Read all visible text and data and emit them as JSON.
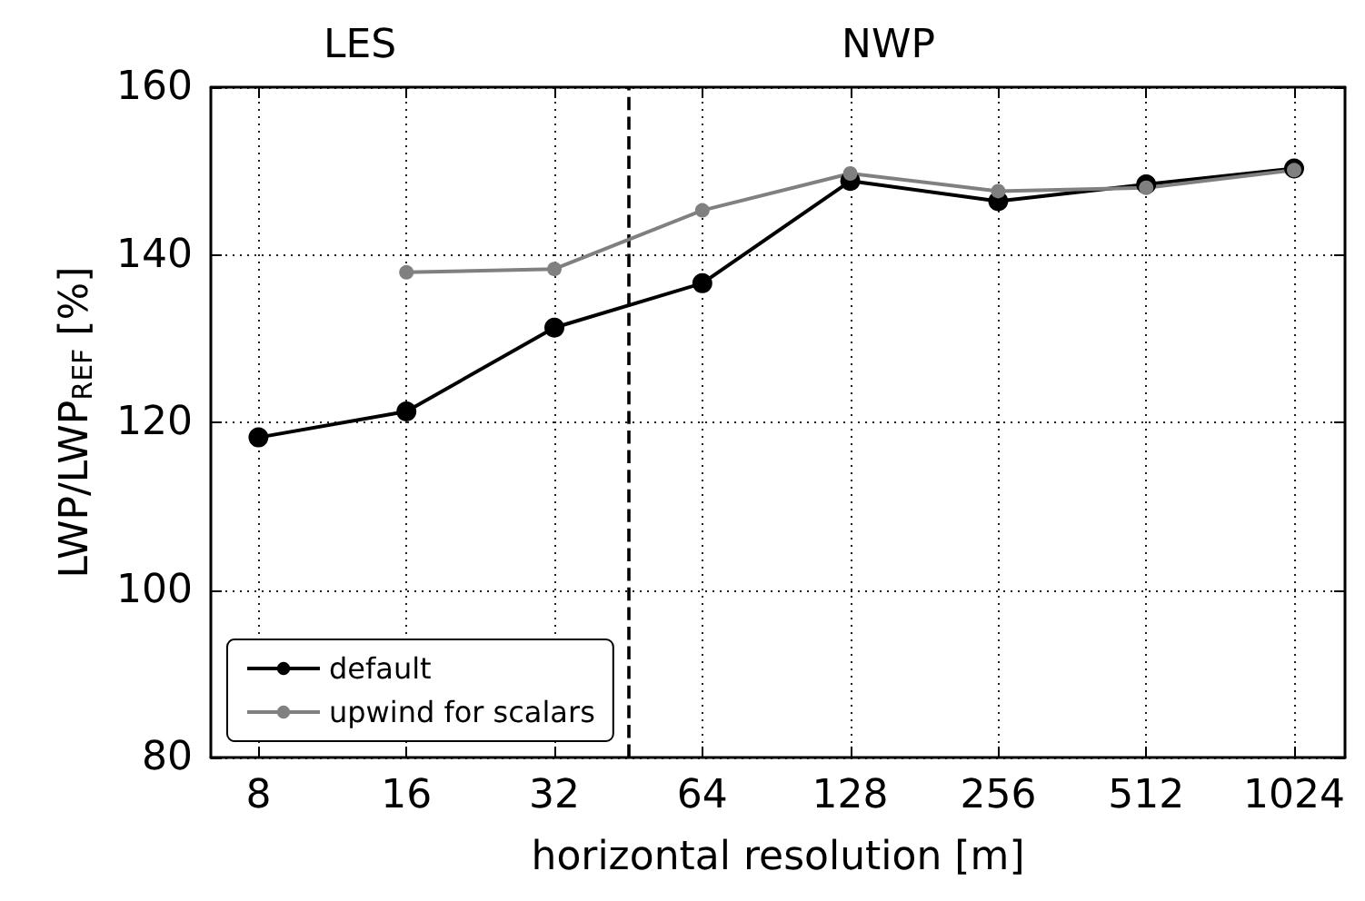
{
  "chart_data": {
    "type": "line",
    "xlabel": "horizontal resolution [m]",
    "ylabel": "LWP/LWP$_{REF}$ [%]",
    "x": [
      8,
      16,
      32,
      64,
      128,
      256,
      512,
      1024
    ],
    "series": [
      {
        "name": "default",
        "color": "#000000",
        "values": [
          118.2,
          121.3,
          131.3,
          136.6,
          148.8,
          146.4,
          148.4,
          150.3
        ]
      },
      {
        "name": "upwind for scalars",
        "color": "#808080",
        "values": [
          null,
          137.9,
          138.3,
          145.3,
          149.7,
          147.6,
          148.0,
          150.1
        ]
      }
    ],
    "log": "x",
    "xlim": [
      6.4,
      1300
    ],
    "xticks": [
      8,
      16,
      32,
      64,
      128,
      256,
      512,
      1024
    ],
    "ylim": [
      80,
      160
    ],
    "yticks": [
      80,
      100,
      120,
      140,
      160
    ],
    "ref_lines": [
      {
        "axis": "x",
        "value": 45.25,
        "color": "#000000",
        "line_style": "dashed"
      }
    ],
    "annotations": [
      "LES",
      "NWP"
    ],
    "grid": true,
    "legend": "bottom left",
    "marker": "circle",
    "line_style": "solid"
  }
}
